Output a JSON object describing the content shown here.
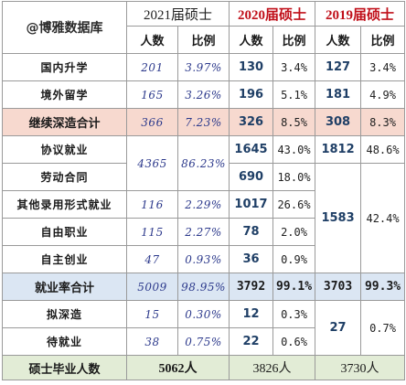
{
  "header": {
    "brand": "@博雅数据库",
    "year_2021": "2021届硕士",
    "year_2020": "2020届硕士",
    "year_2019": "2019届硕士",
    "col_people": "人数",
    "col_ratio": "比例"
  },
  "rows": {
    "domestic": {
      "label": "国内升学",
      "n2021": "201",
      "p2021": "3.97%",
      "n2020": "130",
      "p2020": "3.4%",
      "n2019": "127",
      "p2019": "3.4%"
    },
    "abroad": {
      "label": "境外留学",
      "n2021": "165",
      "p2021": "3.26%",
      "n2020": "196",
      "p2020": "5.1%",
      "n2019": "181",
      "p2019": "4.9%"
    },
    "further_total": {
      "label": "继续深造合计",
      "n2021": "366",
      "p2021": "7.23%",
      "n2020": "326",
      "p2020": "8.5%",
      "n2019": "308",
      "p2019": "8.3%"
    },
    "agreement": {
      "label": "协议就业",
      "n2020": "1645",
      "p2020": "43.0%",
      "n2019": "1812",
      "p2019": "48.6%"
    },
    "labor_contract": {
      "label": "劳动合同",
      "n2020": "690",
      "p2020": "18.0%"
    },
    "other_forms": {
      "label": "其他录用形式就业",
      "n2021": "116",
      "p2021": "2.29%",
      "n2020": "1017",
      "p2020": "26.6%"
    },
    "freelance": {
      "label": "自由职业",
      "n2021": "115",
      "p2021": "2.27%",
      "n2020": "78",
      "p2020": "2.0%"
    },
    "self_employed": {
      "label": "自主创业",
      "n2021": "47",
      "p2021": "0.93%",
      "n2020": "36",
      "p2020": "0.9%"
    },
    "employment_total": {
      "label": "就业率合计",
      "n2021": "5009",
      "p2021": "98.95%",
      "n2020": "3792",
      "p2020": "99.1%",
      "n2019": "3703",
      "p2019": "99.3%"
    },
    "preparing": {
      "label": "拟深造",
      "n2021": "15",
      "p2021": "0.30%",
      "n2020": "12",
      "p2020": "0.3%"
    },
    "waiting": {
      "label": "待就业",
      "n2021": "38",
      "p2021": "0.75%",
      "n2020": "22",
      "p2020": "0.6%"
    },
    "graduates": {
      "label": "硕士毕业人数",
      "v2021": "5062人",
      "v2020": "3826人",
      "v2019": "3730人"
    }
  },
  "merged": {
    "n2021_agreement_labor": "4365",
    "p2021_agreement_labor": "86.23%",
    "n2019_labor_to_self": "1583",
    "p2019_labor_to_self": "42.4%",
    "n2019_prep_wait": "27",
    "p2019_prep_wait": "0.7%"
  },
  "colors": {
    "continue_row_bg": "#f7d9cf",
    "employment_row_bg": "#dbe6f3",
    "graduates_row_bg": "#e2ecd6",
    "header_red": "#c0101a",
    "handwritten_ink": "#2d3a8c"
  }
}
